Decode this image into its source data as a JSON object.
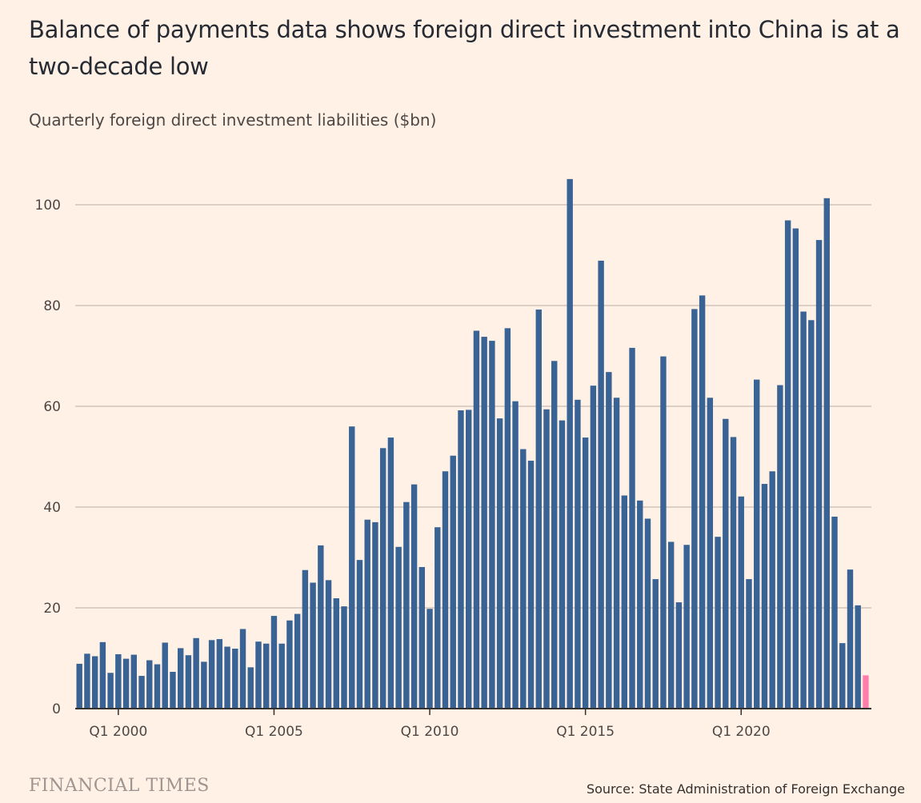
{
  "header": {
    "title": "Balance of payments data shows foreign direct investment into China is at a two-decade low",
    "subtitle": "Quarterly foreign direct investment liabilities ($bn)"
  },
  "footer": {
    "brand": "FINANCIAL TIMES",
    "source": "Source: State Administration of Foreign Exchange"
  },
  "colors": {
    "background": "#fff1e5",
    "bar": "#386394",
    "highlight": "#ff7faa",
    "grid": "#c7bdb4"
  },
  "chart_data": {
    "type": "bar",
    "title": "Balance of payments data shows foreign direct investment into China is at a two-decade low",
    "ylabel": "Quarterly foreign direct investment liabilities ($bn)",
    "ylim": [
      0,
      105
    ],
    "yticks": [
      0,
      20,
      40,
      60,
      80,
      100
    ],
    "grid": true,
    "start_quarter": "1998 Q4",
    "xtick_labels": [
      {
        "label": "Q1 2000",
        "quarter": "2000 Q1"
      },
      {
        "label": "Q1 2005",
        "quarter": "2005 Q1"
      },
      {
        "label": "Q1 2010",
        "quarter": "2010 Q1"
      },
      {
        "label": "Q1 2015",
        "quarter": "2015 Q1"
      },
      {
        "label": "Q1 2020",
        "quarter": "2020 Q1"
      }
    ],
    "highlight_last": true,
    "values": [
      8.9,
      10.9,
      10.4,
      13.2,
      7.1,
      10.8,
      9.9,
      10.7,
      6.5,
      9.6,
      8.8,
      13.1,
      7.3,
      12.0,
      10.6,
      14.0,
      9.3,
      13.6,
      13.8,
      12.3,
      11.9,
      15.8,
      8.2,
      13.3,
      12.9,
      18.4,
      12.9,
      17.5,
      18.8,
      27.5,
      25.0,
      32.4,
      25.5,
      21.9,
      20.3,
      56.0,
      29.5,
      37.5,
      37.0,
      51.7,
      53.8,
      32.1,
      41.0,
      44.5,
      28.1,
      19.8,
      36.0,
      47.1,
      50.2,
      59.2,
      59.3,
      75.0,
      73.8,
      73.0,
      57.6,
      75.5,
      61.0,
      51.5,
      49.2,
      79.2,
      59.4,
      69.0,
      57.2,
      105.1,
      61.3,
      53.8,
      64.1,
      88.9,
      66.8,
      61.7,
      42.3,
      71.6,
      41.3,
      37.7,
      25.7,
      69.9,
      33.1,
      21.1,
      32.5,
      79.3,
      82.0,
      61.7,
      34.1,
      57.5,
      53.9,
      42.1,
      25.7,
      65.3,
      44.6,
      47.1,
      64.2,
      96.9,
      95.3,
      78.8,
      77.1,
      93.0,
      101.3,
      38.1,
      13.0,
      27.6,
      20.5,
      6.6
    ]
  }
}
